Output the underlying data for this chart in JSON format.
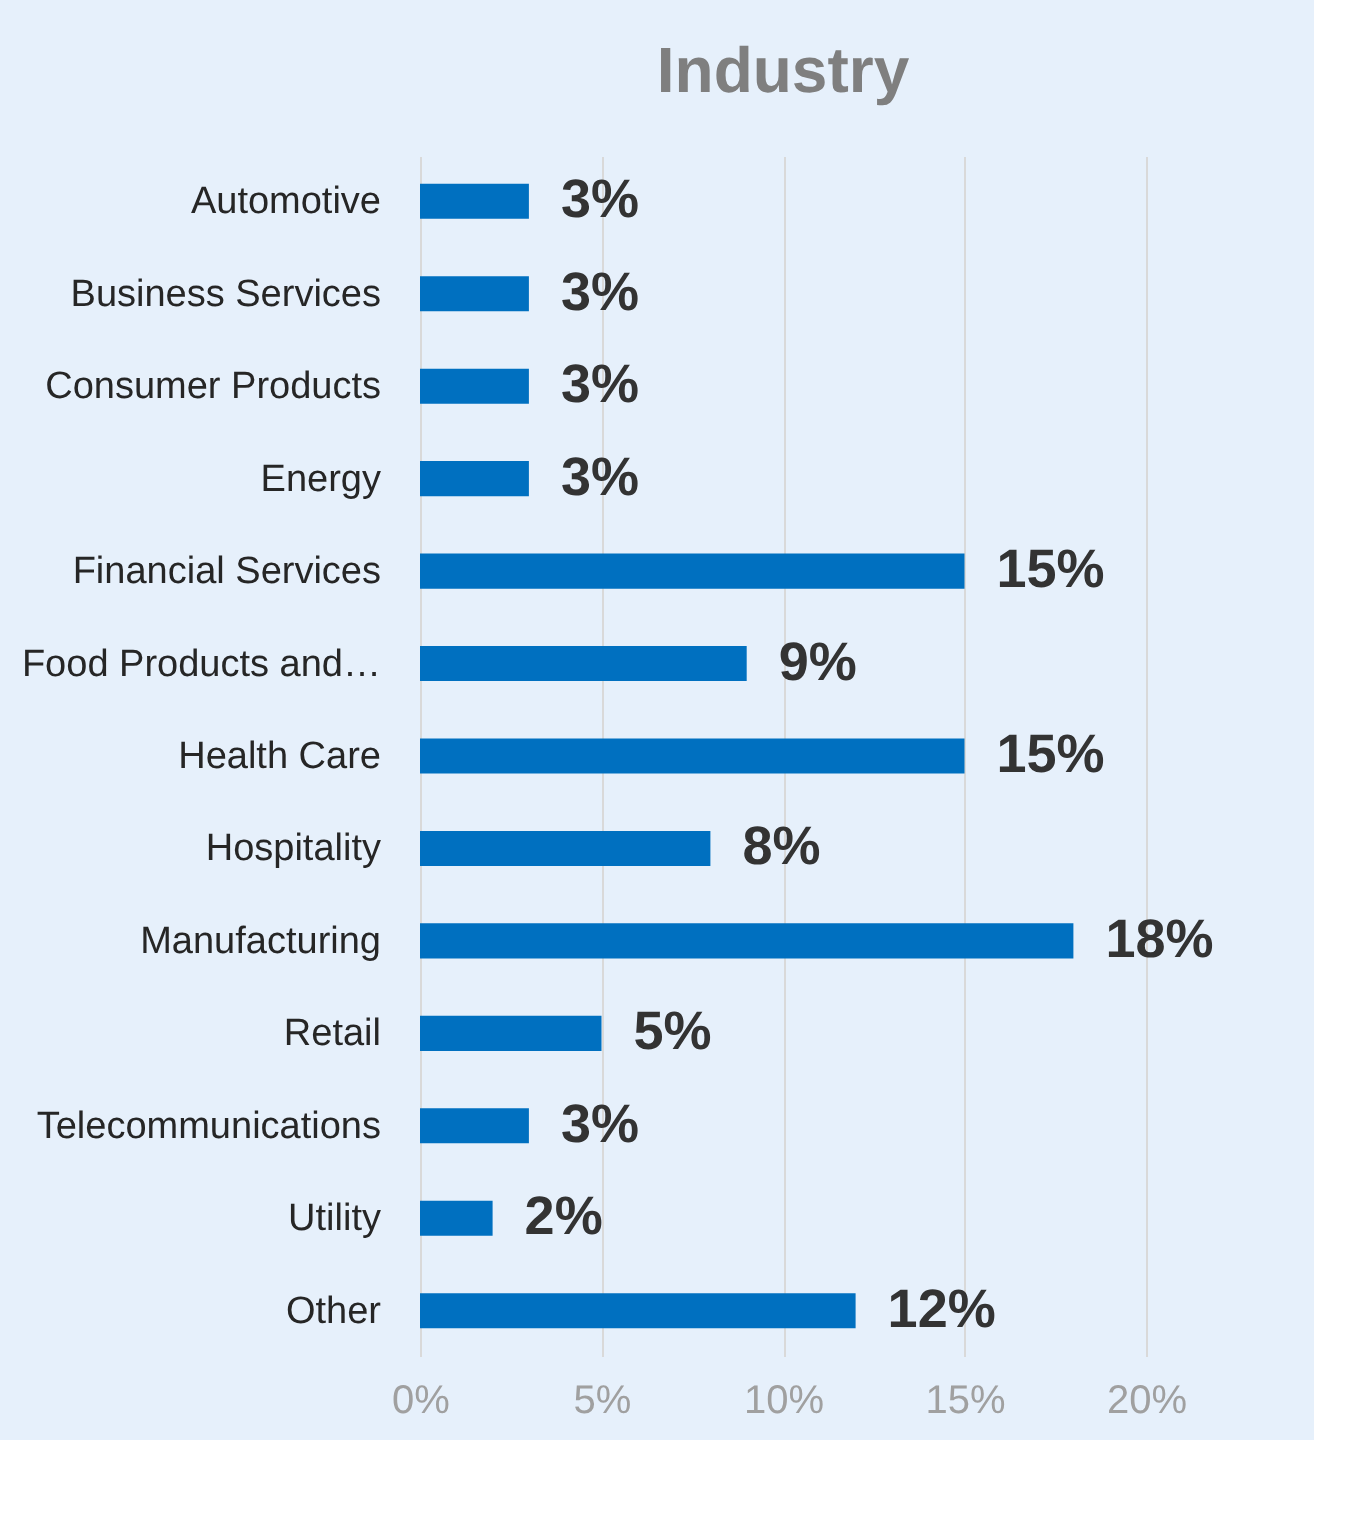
{
  "chart_data": {
    "type": "bar",
    "orientation": "horizontal",
    "title": "Industry",
    "categories": [
      "Automotive",
      "Business Services",
      "Consumer Products",
      "Energy",
      "Financial Services",
      "Food Products and…",
      "Health Care",
      "Hospitality",
      "Manufacturing",
      "Retail",
      "Telecommunications",
      "Utility",
      "Other"
    ],
    "values": [
      3,
      3,
      3,
      3,
      15,
      9,
      15,
      8,
      18,
      5,
      3,
      2,
      12
    ],
    "value_labels": [
      "3%",
      "3%",
      "3%",
      "3%",
      "15%",
      "9%",
      "15%",
      "8%",
      "18%",
      "5%",
      "3%",
      "2%",
      "12%"
    ],
    "color": "#0070c0",
    "xlim": [
      0,
      20
    ],
    "xticks": [
      {
        "value": 0,
        "label": "0%"
      },
      {
        "value": 5,
        "label": "5%"
      },
      {
        "value": 10,
        "label": "10%"
      },
      {
        "value": 15,
        "label": "15%"
      },
      {
        "value": 20,
        "label": "20%"
      }
    ],
    "grid": "x"
  }
}
